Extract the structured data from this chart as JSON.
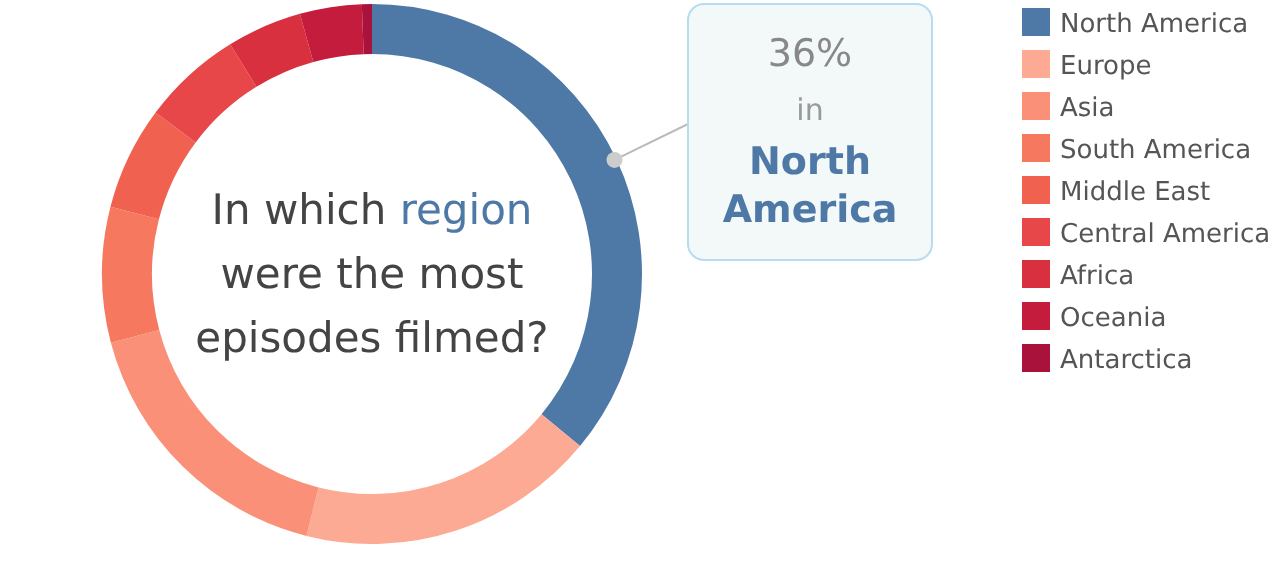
{
  "chart_data": {
    "type": "donut",
    "title": "In which region were the most episodes filmed?",
    "categories": [
      "North America",
      "Europe",
      "Asia",
      "South America",
      "Middle East",
      "Central America",
      "Africa",
      "Oceania",
      "Antarctica"
    ],
    "values": [
      36,
      17.9,
      17,
      8.1,
      6.2,
      6,
      4.5,
      3.7,
      0.6
    ],
    "colors": [
      "#4e79a7",
      "#fdaa94",
      "#fb9078",
      "#f6785f",
      "#f0624f",
      "#e8474a",
      "#d8303f",
      "#c41c3c",
      "#a9123a"
    ],
    "annotations": [
      {
        "text": "36% in North America",
        "x": "North America"
      }
    ],
    "legend": "right"
  }
}
